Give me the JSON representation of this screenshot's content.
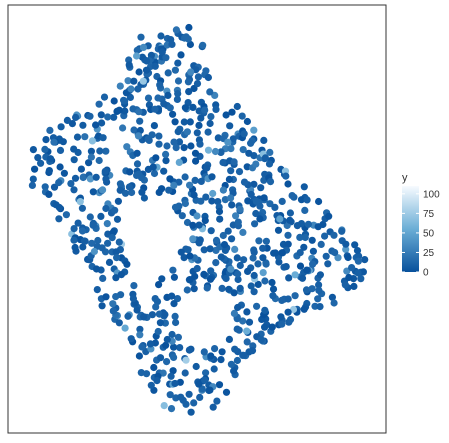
{
  "chart_data": {
    "type": "scatter",
    "title": "",
    "xlabel": "",
    "ylabel": "",
    "grid": false,
    "axes_visible": false,
    "marker": "circle",
    "point_count_approx": 900,
    "shape_description": "Dense cloud of points forming a closed, irregular ring-like blob (t-SNE style embedding); lighter points are sparse and scattered.",
    "points_scale": "points are generated procedurally to approximate the outline density shown",
    "color_scale": {
      "variable": "y",
      "title": "y",
      "domain": [
        0,
        110
      ],
      "low_color": "#08519c",
      "mid_color": "#6baed6",
      "high_color": "#f7fbff",
      "ticks": [
        0,
        25,
        50,
        75,
        100
      ]
    },
    "legend_position": "right"
  }
}
